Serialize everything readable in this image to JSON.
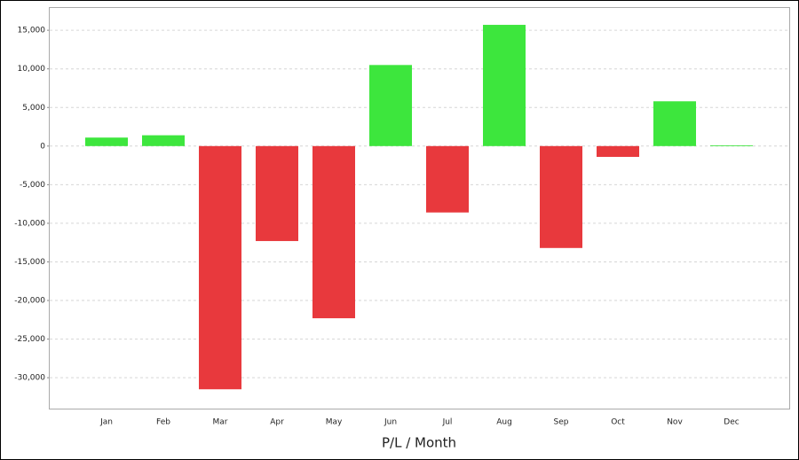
{
  "chart_data": {
    "type": "bar",
    "x_label": "P/L / Month",
    "categories": [
      "Jan",
      "Feb",
      "Mar",
      "Apr",
      "May",
      "Jun",
      "Jul",
      "Aug",
      "Sep",
      "Oct",
      "Nov",
      "Dec"
    ],
    "values": [
      1100,
      1400,
      -31500,
      -12300,
      -22300,
      10500,
      -8600,
      15700,
      -13200,
      -1400,
      5800,
      100
    ],
    "positive_color": "#3de63d",
    "negative_color": "#e8393d",
    "ylim": [
      -34000,
      18000
    ],
    "yticks": [
      {
        "value": -30000,
        "label": "-30,000"
      },
      {
        "value": -25000,
        "label": "-25,000"
      },
      {
        "value": -20000,
        "label": "-20,000"
      },
      {
        "value": -15000,
        "label": "-15,000"
      },
      {
        "value": -10000,
        "label": "-10,000"
      },
      {
        "value": -5000,
        "label": "-5,000"
      },
      0,
      {
        "value": 5000,
        "label": "5,000"
      },
      {
        "value": 10000,
        "label": "10,000"
      },
      {
        "value": 15000,
        "label": "15,000"
      }
    ],
    "grid": true
  }
}
